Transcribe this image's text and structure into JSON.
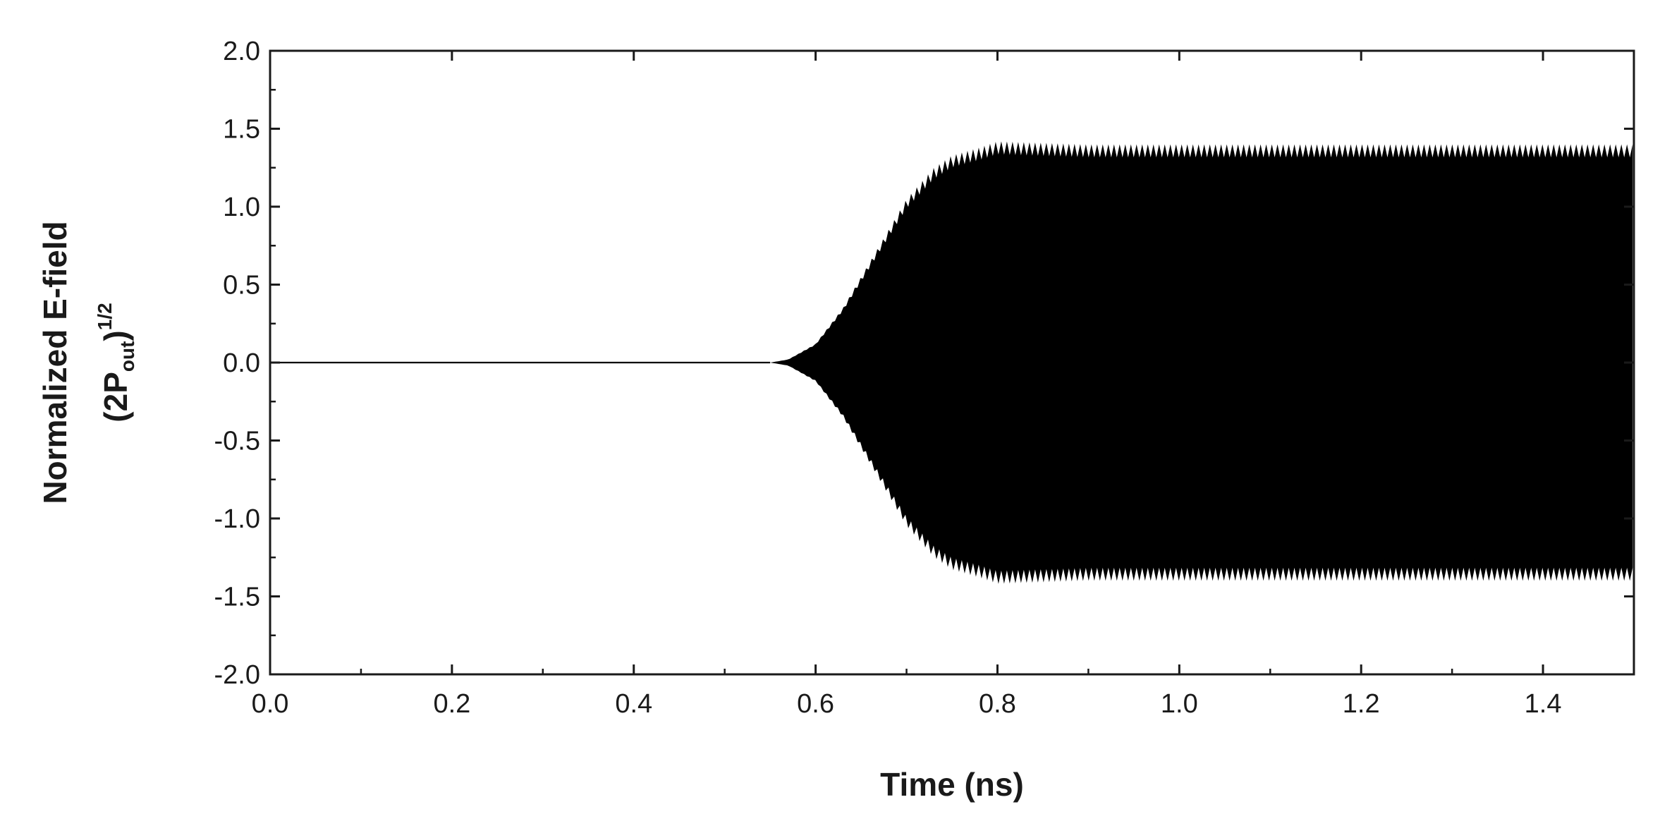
{
  "chart_data": {
    "type": "line",
    "title": "",
    "xlabel": "Time (ns)",
    "ylabel_line1": "Normalized E-field",
    "ylabel_line2": {
      "open": "(2P",
      "sub": "out",
      "close": ")",
      "sup": "1/2"
    },
    "xlim": [
      0.0,
      1.5
    ],
    "ylim": [
      -2.0,
      2.0
    ],
    "x_ticks": [
      "0.0",
      "0.2",
      "0.4",
      "0.6",
      "0.8",
      "1.0",
      "1.2",
      "1.4"
    ],
    "x_tick_values": [
      0.0,
      0.2,
      0.4,
      0.6,
      0.8,
      1.0,
      1.2,
      1.4
    ],
    "y_ticks": [
      "2.0",
      "1.5",
      "1.0",
      "0.5",
      "0.0",
      "-0.5",
      "-1.0",
      "-1.5",
      "-2.0"
    ],
    "y_tick_values": [
      2.0,
      1.5,
      1.0,
      0.5,
      0.0,
      -0.5,
      -1.0,
      -1.5,
      -2.0
    ],
    "grid": false,
    "legend": "none",
    "series": [
      {
        "color": "#000000",
        "envelope": {
          "x": [
            0.0,
            0.55,
            0.57,
            0.6,
            0.63,
            0.65,
            0.68,
            0.7,
            0.73,
            0.75,
            0.78,
            0.8,
            0.85,
            0.9,
            1.0,
            1.1,
            1.2,
            1.3,
            1.4,
            1.5
          ],
          "amplitude": [
            0.0,
            0.0,
            0.02,
            0.12,
            0.35,
            0.55,
            0.85,
            1.05,
            1.25,
            1.33,
            1.38,
            1.42,
            1.41,
            1.4,
            1.4,
            1.4,
            1.4,
            1.4,
            1.4,
            1.4
          ]
        }
      }
    ]
  }
}
